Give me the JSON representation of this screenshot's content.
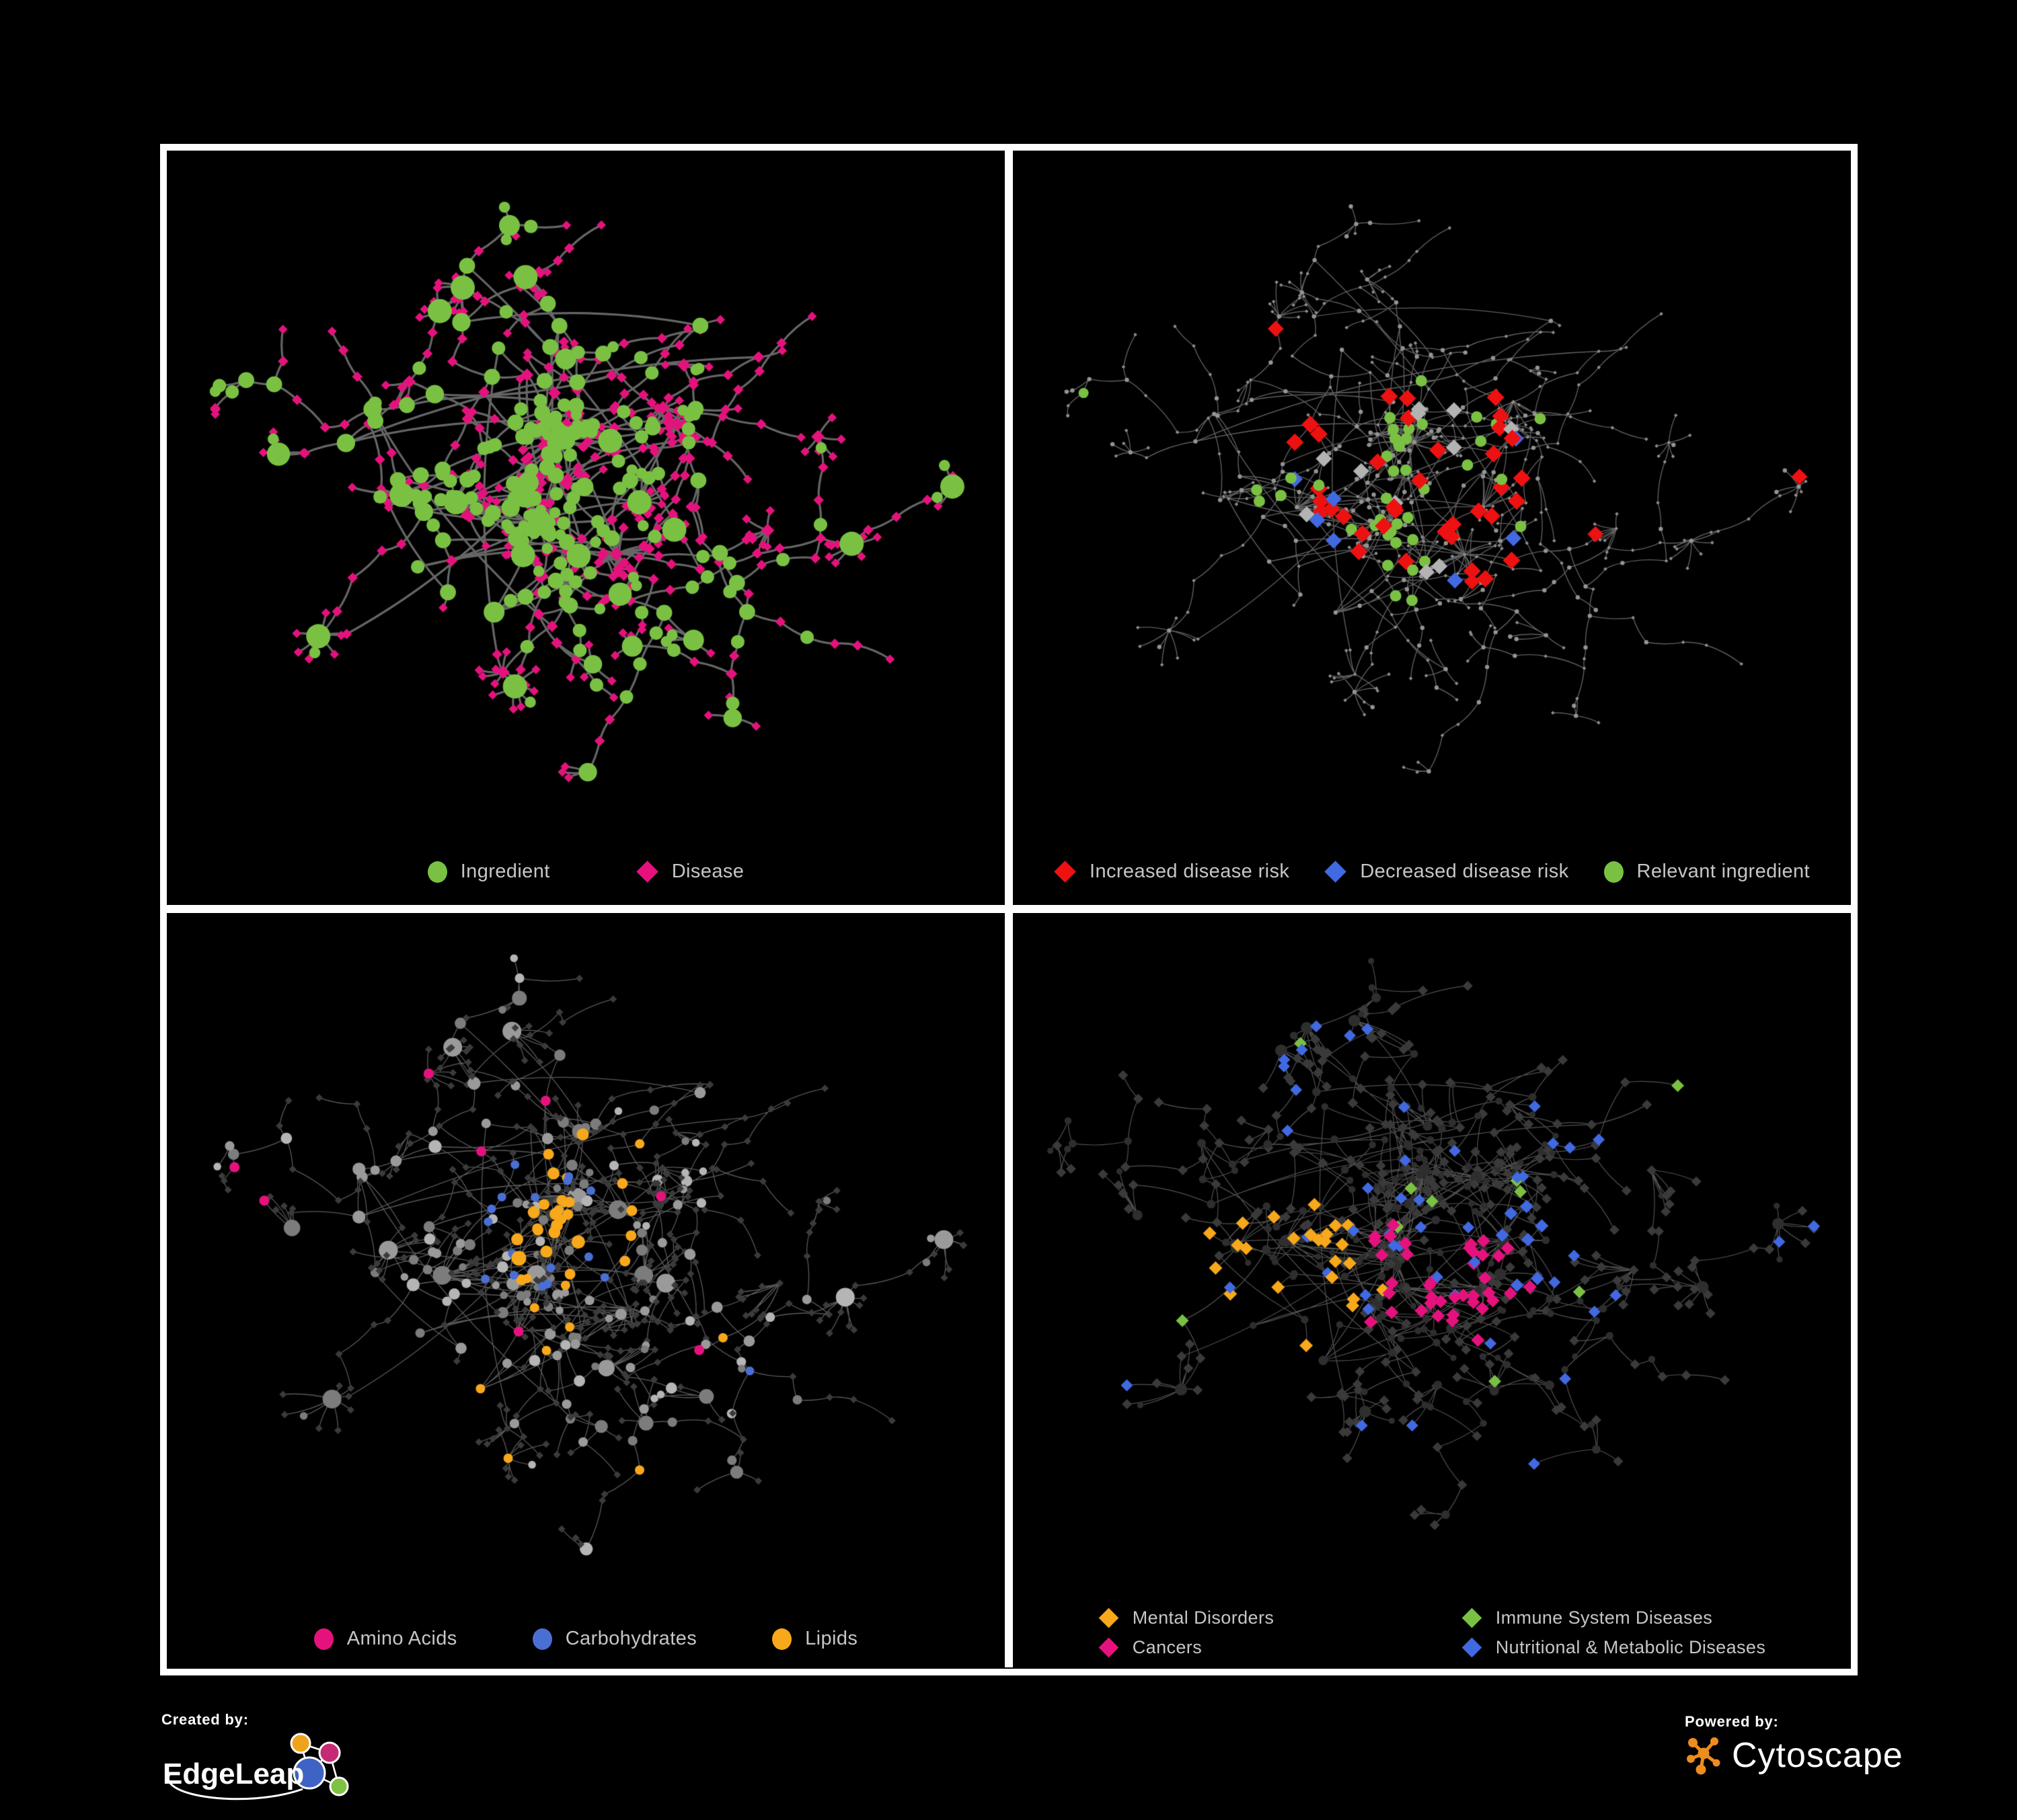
{
  "page": {
    "background": "#000000",
    "panel_border": "#ffffff",
    "legend_text": "#c6c6c6"
  },
  "colors": {
    "green": "#7ac143",
    "magenta": "#e5127d",
    "red": "#ee1111",
    "blue": "#4169e1",
    "blue2": "#4a6fd4",
    "orange": "#f7a81b",
    "silver": "#b3b3b3"
  },
  "panels": [
    {
      "id": "ingredient-disease",
      "legend": [
        {
          "label": "Ingredient",
          "marker": "circle",
          "color": "#7ac143"
        },
        {
          "label": "Disease",
          "marker": "diamond",
          "color": "#e5127d"
        }
      ],
      "style": {
        "edgeColor": "#6b6b6b",
        "edgeWidth": 3.2,
        "edgeAlpha": 0.95
      }
    },
    {
      "id": "disease-risk",
      "legend": [
        {
          "label": "Increased disease risk",
          "marker": "diamond",
          "color": "#ee1111"
        },
        {
          "label": "Decreased disease risk",
          "marker": "diamond",
          "color": "#4169e1"
        },
        {
          "label": "Relevant ingredient",
          "marker": "circle",
          "color": "#7ac143"
        }
      ],
      "style": {
        "edgeColor": "#6e6e6e",
        "edgeWidth": 1.4,
        "edgeAlpha": 0.85
      }
    },
    {
      "id": "chemical-classes",
      "legend": [
        {
          "label": "Amino Acids",
          "marker": "circle",
          "color": "#e5127d"
        },
        {
          "label": "Carbohydrates",
          "marker": "circle",
          "color": "#4a6fd4"
        },
        {
          "label": "Lipids",
          "marker": "circle",
          "color": "#f7a81b"
        }
      ],
      "style": {
        "edgeColor": "#707070",
        "edgeWidth": 1.3,
        "edgeAlpha": 0.8
      }
    },
    {
      "id": "disease-classes",
      "legend": [
        {
          "label": "Mental Disorders",
          "marker": "diamond",
          "color": "#f7a81b"
        },
        {
          "label": "Immune System Diseases",
          "marker": "diamond",
          "color": "#7ac143"
        },
        {
          "label": "Cancers",
          "marker": "diamond",
          "color": "#e5127d"
        },
        {
          "label": "Nutritional & Metabolic Diseases",
          "marker": "diamond",
          "color": "#4169e1"
        }
      ],
      "style": {
        "edgeColor": "#747474",
        "edgeWidth": 1.2,
        "edgeAlpha": 0.7
      }
    }
  ],
  "footer": {
    "created_by_label": "Created by:",
    "created_by_brand": "EdgeLeap",
    "powered_by_label": "Powered by:",
    "powered_by_brand": "Cytoscape",
    "edgeleap_colors": {
      "blue": "#3f63c4",
      "orange": "#efa31c",
      "magenta": "#c62a74",
      "green": "#7dc242"
    },
    "cytoscape_orange": "#ef8c1e"
  },
  "chart_data": {
    "type": "network",
    "description": "Four panels showing the same ingredient-disease association network on black backgrounds; circles represent ingredients and diamonds represent diseases; each panel highlights a different classification.",
    "approx_nodes": 640,
    "approx_edges": 700,
    "node_shape_semantics": {
      "circle": "ingredient",
      "diamond": "disease"
    },
    "views": [
      {
        "panel": "top-left",
        "highlights": "all nodes colored",
        "categories": [
          {
            "label": "Ingredient",
            "shape": "circle",
            "color": "#7ac143",
            "placement": "junction/hub nodes, dense green cluster near center"
          },
          {
            "label": "Disease",
            "shape": "diamond",
            "color": "#e5127d",
            "placement": "majority of leaf nodes across periphery"
          }
        ]
      },
      {
        "panel": "top-right",
        "highlights": "grey base network with colored subset near the dense core",
        "categories": [
          {
            "label": "Increased disease risk",
            "shape": "diamond",
            "color": "#ee1111",
            "placement": "about 30 diamonds concentrated around the core, a few far right/bottom"
          },
          {
            "label": "Decreased disease risk",
            "shape": "diamond",
            "color": "#4169e1",
            "placement": "a few near core left side and two at far top-right"
          },
          {
            "label": "Relevant ingredient",
            "shape": "circle",
            "color": "#7ac143",
            "placement": "about 25 circles around the core"
          },
          {
            "label": "unlabeled grey diamonds",
            "shape": "diamond",
            "color": "#b3b3b3",
            "placement": "several near the core"
          }
        ]
      },
      {
        "panel": "bottom-left",
        "highlights": "grey ingredient circles, dark disease diamonds, colored chemical classes",
        "categories": [
          {
            "label": "Amino Acids",
            "shape": "circle",
            "color": "#e5127d",
            "placement": "scattered, mostly mid-left and bottom-right"
          },
          {
            "label": "Carbohydrates",
            "shape": "circle",
            "color": "#4a6fd4",
            "placement": "few, mostly in upper-middle cluster"
          },
          {
            "label": "Lipids",
            "shape": "circle",
            "color": "#f7a81b",
            "placement": "dense cluster upper-middle plus scattered"
          }
        ]
      },
      {
        "panel": "bottom-right",
        "highlights": "dark diamond diseases with colored disease classes",
        "categories": [
          {
            "label": "Mental Disorders",
            "shape": "diamond",
            "color": "#f7a81b",
            "placement": "large dense cluster left of center"
          },
          {
            "label": "Immune System Diseases",
            "shape": "diamond",
            "color": "#7ac143",
            "placement": "about 10 sprinkled"
          },
          {
            "label": "Cancers",
            "shape": "diamond",
            "color": "#e5127d",
            "placement": "cluster in the center plus far-right group"
          },
          {
            "label": "Nutritional & Metabolic Diseases",
            "shape": "diamond",
            "color": "#4169e1",
            "placement": "widely scattered, clusters right of center and top-right"
          }
        ]
      }
    ]
  }
}
